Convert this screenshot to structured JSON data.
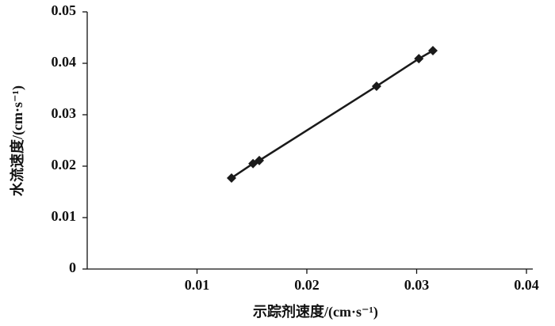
{
  "chart_data": {
    "type": "scatter-line",
    "xlabel": "示踪剂速度/(cm·s⁻¹)",
    "ylabel": "水流速度/(cm·s⁻¹)",
    "x": [
      0.01314,
      0.0151,
      0.01567,
      0.02635,
      0.0302,
      0.03148
    ],
    "series": [
      {
        "color": "#1a1a1a",
        "values": [
          0.0177,
          0.0205,
          0.0211,
          0.03554,
          0.0409,
          0.04246
        ]
      }
    ],
    "xlim": [
      0,
      0.04
    ],
    "xticks": [
      0.01,
      0.02,
      0.03,
      0.04
    ],
    "ylim": [
      0,
      0.05
    ],
    "yticks": [
      0,
      0.01,
      0.02,
      0.03,
      0.04,
      0.05
    ],
    "grid": false
  }
}
